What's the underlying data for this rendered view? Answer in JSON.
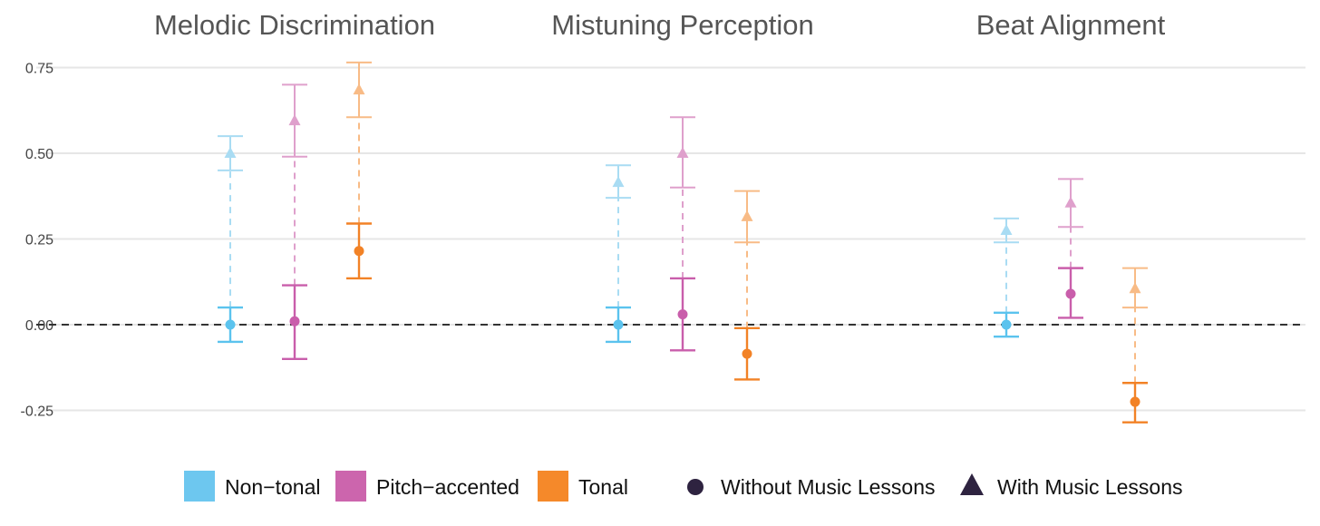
{
  "chart_data": {
    "type": "scatter",
    "subtype": "point-range with error bars, faceted",
    "facets": [
      "Melodic Discrimination",
      "Mistuning Perception",
      "Beat Alignment"
    ],
    "y_ticks": [
      "0.75",
      "0.50",
      "0.25",
      "0.00",
      "-0.25"
    ],
    "ylim": [
      -0.33,
      0.78
    ],
    "reference_line": {
      "y": 0,
      "style": "dashed"
    },
    "groups": [
      "Non-tonal",
      "Pitch-accented",
      "Tonal"
    ],
    "conditions": [
      "Without Music Lessons",
      "With Music Lessons"
    ],
    "colors": {
      "Non-tonal": "#5bc3ee",
      "Pitch-accented": "#c95eab",
      "Tonal": "#f28226",
      "condition_marker": "#2e2340"
    },
    "points": [
      {
        "facet": "Melodic Discrimination",
        "group": "Non-tonal",
        "without": {
          "y": 0.0,
          "lo": -0.05,
          "hi": 0.05
        },
        "with": {
          "y": 0.5,
          "lo": 0.45,
          "hi": 0.55
        }
      },
      {
        "facet": "Melodic Discrimination",
        "group": "Pitch-accented",
        "without": {
          "y": 0.01,
          "lo": -0.1,
          "hi": 0.115
        },
        "with": {
          "y": 0.595,
          "lo": 0.49,
          "hi": 0.7
        }
      },
      {
        "facet": "Melodic Discrimination",
        "group": "Tonal",
        "without": {
          "y": 0.215,
          "lo": 0.135,
          "hi": 0.295
        },
        "with": {
          "y": 0.685,
          "lo": 0.605,
          "hi": 0.765
        }
      },
      {
        "facet": "Mistuning Perception",
        "group": "Non-tonal",
        "without": {
          "y": 0.0,
          "lo": -0.05,
          "hi": 0.05
        },
        "with": {
          "y": 0.415,
          "lo": 0.37,
          "hi": 0.465
        }
      },
      {
        "facet": "Mistuning Perception",
        "group": "Pitch-accented",
        "without": {
          "y": 0.03,
          "lo": -0.075,
          "hi": 0.135
        },
        "with": {
          "y": 0.5,
          "lo": 0.4,
          "hi": 0.605
        }
      },
      {
        "facet": "Mistuning Perception",
        "group": "Tonal",
        "without": {
          "y": -0.085,
          "lo": -0.16,
          "hi": -0.01
        },
        "with": {
          "y": 0.315,
          "lo": 0.24,
          "hi": 0.39
        }
      },
      {
        "facet": "Beat Alignment",
        "group": "Non-tonal",
        "without": {
          "y": 0.0,
          "lo": -0.035,
          "hi": 0.035
        },
        "with": {
          "y": 0.275,
          "lo": 0.24,
          "hi": 0.31
        }
      },
      {
        "facet": "Beat Alignment",
        "group": "Pitch-accented",
        "without": {
          "y": 0.09,
          "lo": 0.02,
          "hi": 0.165
        },
        "with": {
          "y": 0.355,
          "lo": 0.285,
          "hi": 0.425
        }
      },
      {
        "facet": "Beat Alignment",
        "group": "Tonal",
        "without": {
          "y": -0.225,
          "lo": -0.285,
          "hi": -0.17
        },
        "with": {
          "y": 0.105,
          "lo": 0.05,
          "hi": 0.165
        }
      }
    ],
    "grid": true,
    "legend": {
      "position": "bottom",
      "group_entries": [
        "Non−tonal",
        "Pitch−accented",
        "Tonal"
      ],
      "condition_entries": [
        "Without Music Lessons",
        "With Music Lessons"
      ]
    }
  }
}
